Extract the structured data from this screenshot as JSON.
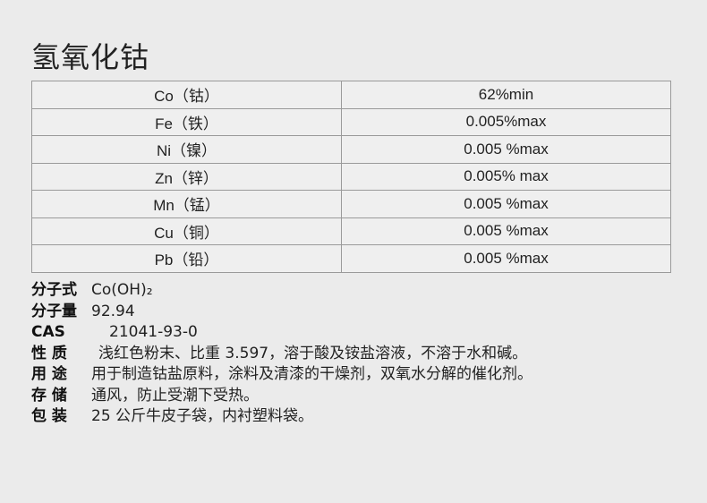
{
  "title": "氢氧化钴",
  "spec_table": [
    {
      "element": "Co（钴）",
      "value": "62%min"
    },
    {
      "element": "Fe（铁）",
      "value": "0.005%max"
    },
    {
      "element": "Ni（镍）",
      "value": "0.005 %max"
    },
    {
      "element": "Zn（锌）",
      "value": "0.005% max"
    },
    {
      "element": "Mn（锰）",
      "value": "0.005 %max"
    },
    {
      "element": "Cu（铜）",
      "value": "0.005 %max"
    },
    {
      "element": "Pb（铅）",
      "value": "0.005 %max"
    }
  ],
  "properties": [
    {
      "label": "分子式",
      "value": "Co(OH)₂"
    },
    {
      "label": "分子量",
      "value": "92.94"
    },
    {
      "label": "CAS",
      "value": "21041-93-0"
    },
    {
      "label": "性 质",
      "value": "浅红色粉末、比重 3.597，溶于酸及铵盐溶液，不溶于水和碱。"
    },
    {
      "label": "用 途",
      "value": "用于制造钴盐原料，涂料及清漆的干燥剂，双氧水分解的催化剂。"
    },
    {
      "label": "存 储",
      "value": "通风，防止受潮下受热。"
    },
    {
      "label": "包 装",
      "value": "25 公斤牛皮子袋，内衬塑料袋。"
    }
  ]
}
